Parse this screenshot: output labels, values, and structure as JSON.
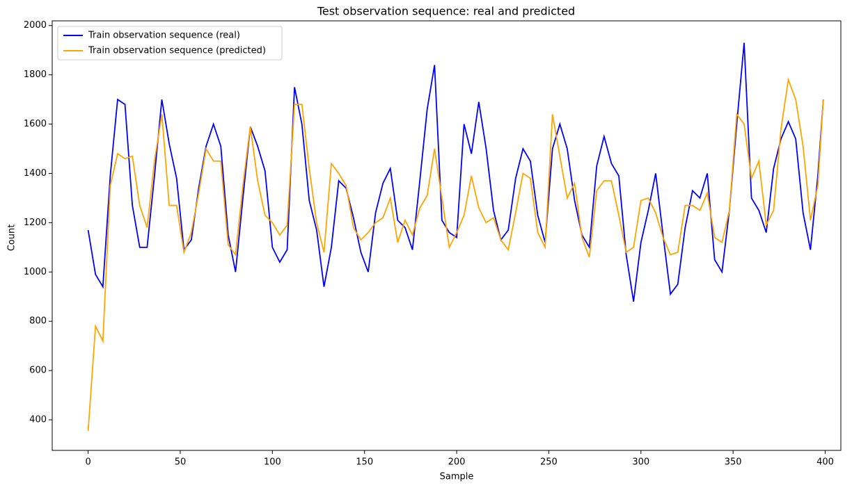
{
  "chart_data": {
    "type": "line",
    "title": "Test observation sequence: real and predicted",
    "xlabel": "Sample",
    "ylabel": "Count",
    "x": [
      0,
      4,
      8,
      12,
      16,
      20,
      24,
      28,
      32,
      36,
      40,
      44,
      48,
      52,
      56,
      60,
      64,
      68,
      72,
      76,
      80,
      84,
      88,
      92,
      96,
      100,
      104,
      108,
      112,
      116,
      120,
      124,
      128,
      132,
      136,
      140,
      144,
      148,
      152,
      156,
      160,
      164,
      168,
      172,
      176,
      180,
      184,
      188,
      192,
      196,
      200,
      204,
      208,
      212,
      216,
      220,
      224,
      228,
      232,
      236,
      240,
      244,
      248,
      252,
      256,
      260,
      264,
      268,
      272,
      276,
      280,
      284,
      288,
      292,
      296,
      300,
      304,
      308,
      312,
      316,
      320,
      324,
      328,
      332,
      336,
      340,
      344,
      348,
      352,
      356,
      360,
      364,
      368,
      372,
      376,
      380,
      384,
      388,
      392,
      396,
      399
    ],
    "series": [
      {
        "name": "Train observation sequence (real)",
        "color": "#0000ff",
        "values": [
          1170,
          990,
          940,
          1390,
          1700,
          1680,
          1270,
          1100,
          1100,
          1390,
          1700,
          1520,
          1380,
          1090,
          1130,
          1340,
          1510,
          1600,
          1510,
          1150,
          1000,
          1300,
          1590,
          1510,
          1410,
          1100,
          1040,
          1090,
          1750,
          1600,
          1290,
          1170,
          940,
          1100,
          1370,
          1340,
          1220,
          1080,
          1000,
          1240,
          1360,
          1420,
          1210,
          1180,
          1090,
          1370,
          1660,
          1840,
          1210,
          1160,
          1140,
          1600,
          1480,
          1690,
          1500,
          1250,
          1130,
          1170,
          1380,
          1500,
          1450,
          1230,
          1120,
          1500,
          1600,
          1500,
          1290,
          1150,
          1100,
          1430,
          1550,
          1440,
          1390,
          1070,
          880,
          1120,
          1250,
          1400,
          1150,
          910,
          950,
          1180,
          1330,
          1300,
          1400,
          1050,
          1000,
          1250,
          1600,
          1930,
          1300,
          1250,
          1160,
          1420,
          1540,
          1610,
          1540,
          1240,
          1090,
          1390,
          1700
        ]
      },
      {
        "name": "Train observation sequence (predicted)",
        "color": "#ffa500",
        "values": [
          355,
          780,
          720,
          1350,
          1480,
          1460,
          1470,
          1270,
          1180,
          1450,
          1640,
          1270,
          1270,
          1080,
          1160,
          1320,
          1500,
          1450,
          1450,
          1110,
          1070,
          1350,
          1590,
          1370,
          1230,
          1200,
          1150,
          1190,
          1680,
          1680,
          1420,
          1200,
          1080,
          1440,
          1400,
          1350,
          1180,
          1130,
          1160,
          1200,
          1220,
          1300,
          1120,
          1210,
          1150,
          1260,
          1310,
          1500,
          1300,
          1100,
          1160,
          1230,
          1390,
          1260,
          1200,
          1220,
          1130,
          1090,
          1240,
          1400,
          1380,
          1160,
          1100,
          1640,
          1470,
          1300,
          1360,
          1140,
          1060,
          1330,
          1370,
          1370,
          1230,
          1080,
          1100,
          1290,
          1300,
          1240,
          1140,
          1070,
          1080,
          1270,
          1270,
          1250,
          1320,
          1140,
          1120,
          1250,
          1640,
          1600,
          1380,
          1450,
          1190,
          1250,
          1580,
          1780,
          1700,
          1510,
          1210,
          1350,
          1700
        ]
      }
    ],
    "xlim": [
      -19.5,
      408.5
    ],
    "ylim": [
      276,
      2019
    ],
    "xticks": [
      0,
      50,
      100,
      150,
      200,
      250,
      300,
      350,
      400
    ],
    "yticks": [
      400,
      600,
      800,
      1000,
      1200,
      1400,
      1600,
      1800,
      2000
    ],
    "legend": "upper left",
    "grid": false
  }
}
